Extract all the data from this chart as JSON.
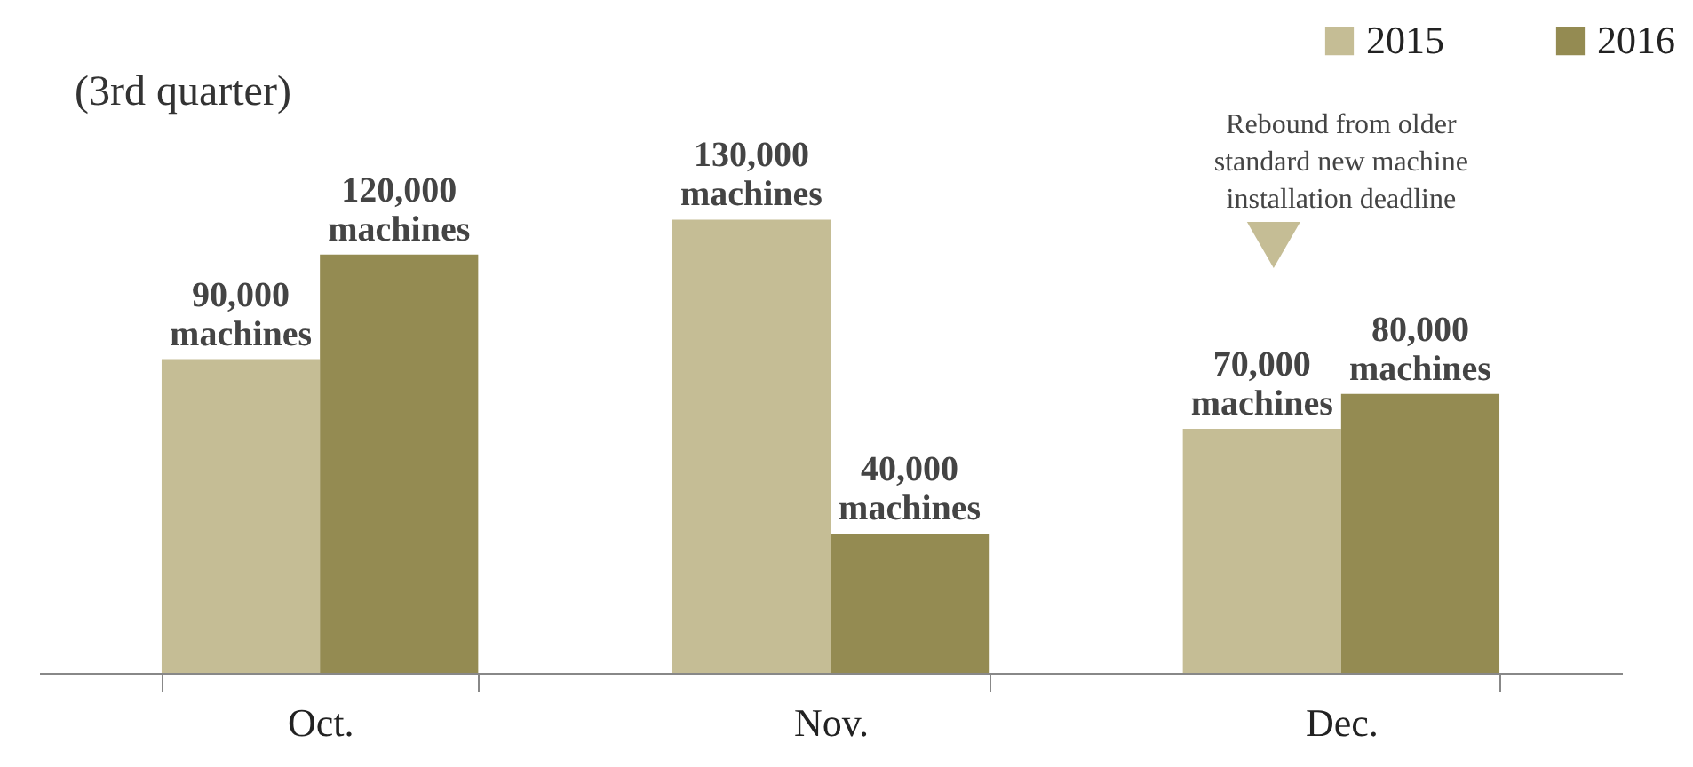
{
  "chart_data": {
    "type": "bar",
    "categories": [
      "Oct.",
      "Nov.",
      "Dec."
    ],
    "series": [
      {
        "name": "2015",
        "color": "#c5bd95",
        "values": [
          90000,
          130000,
          70000
        ],
        "value_labels": [
          "90,000 machines",
          "130,000 machines",
          "70,000 machines"
        ]
      },
      {
        "name": "2016",
        "color": "#948b52",
        "values": [
          120000,
          40000,
          80000
        ],
        "value_labels": [
          "120,000 machines",
          "40,000 machines",
          "80,000 machines"
        ]
      }
    ],
    "annotations": [
      "(3rd quarter)",
      "Rebound from older standard new machine installation deadline"
    ],
    "legend": "top right",
    "grid": false
  }
}
